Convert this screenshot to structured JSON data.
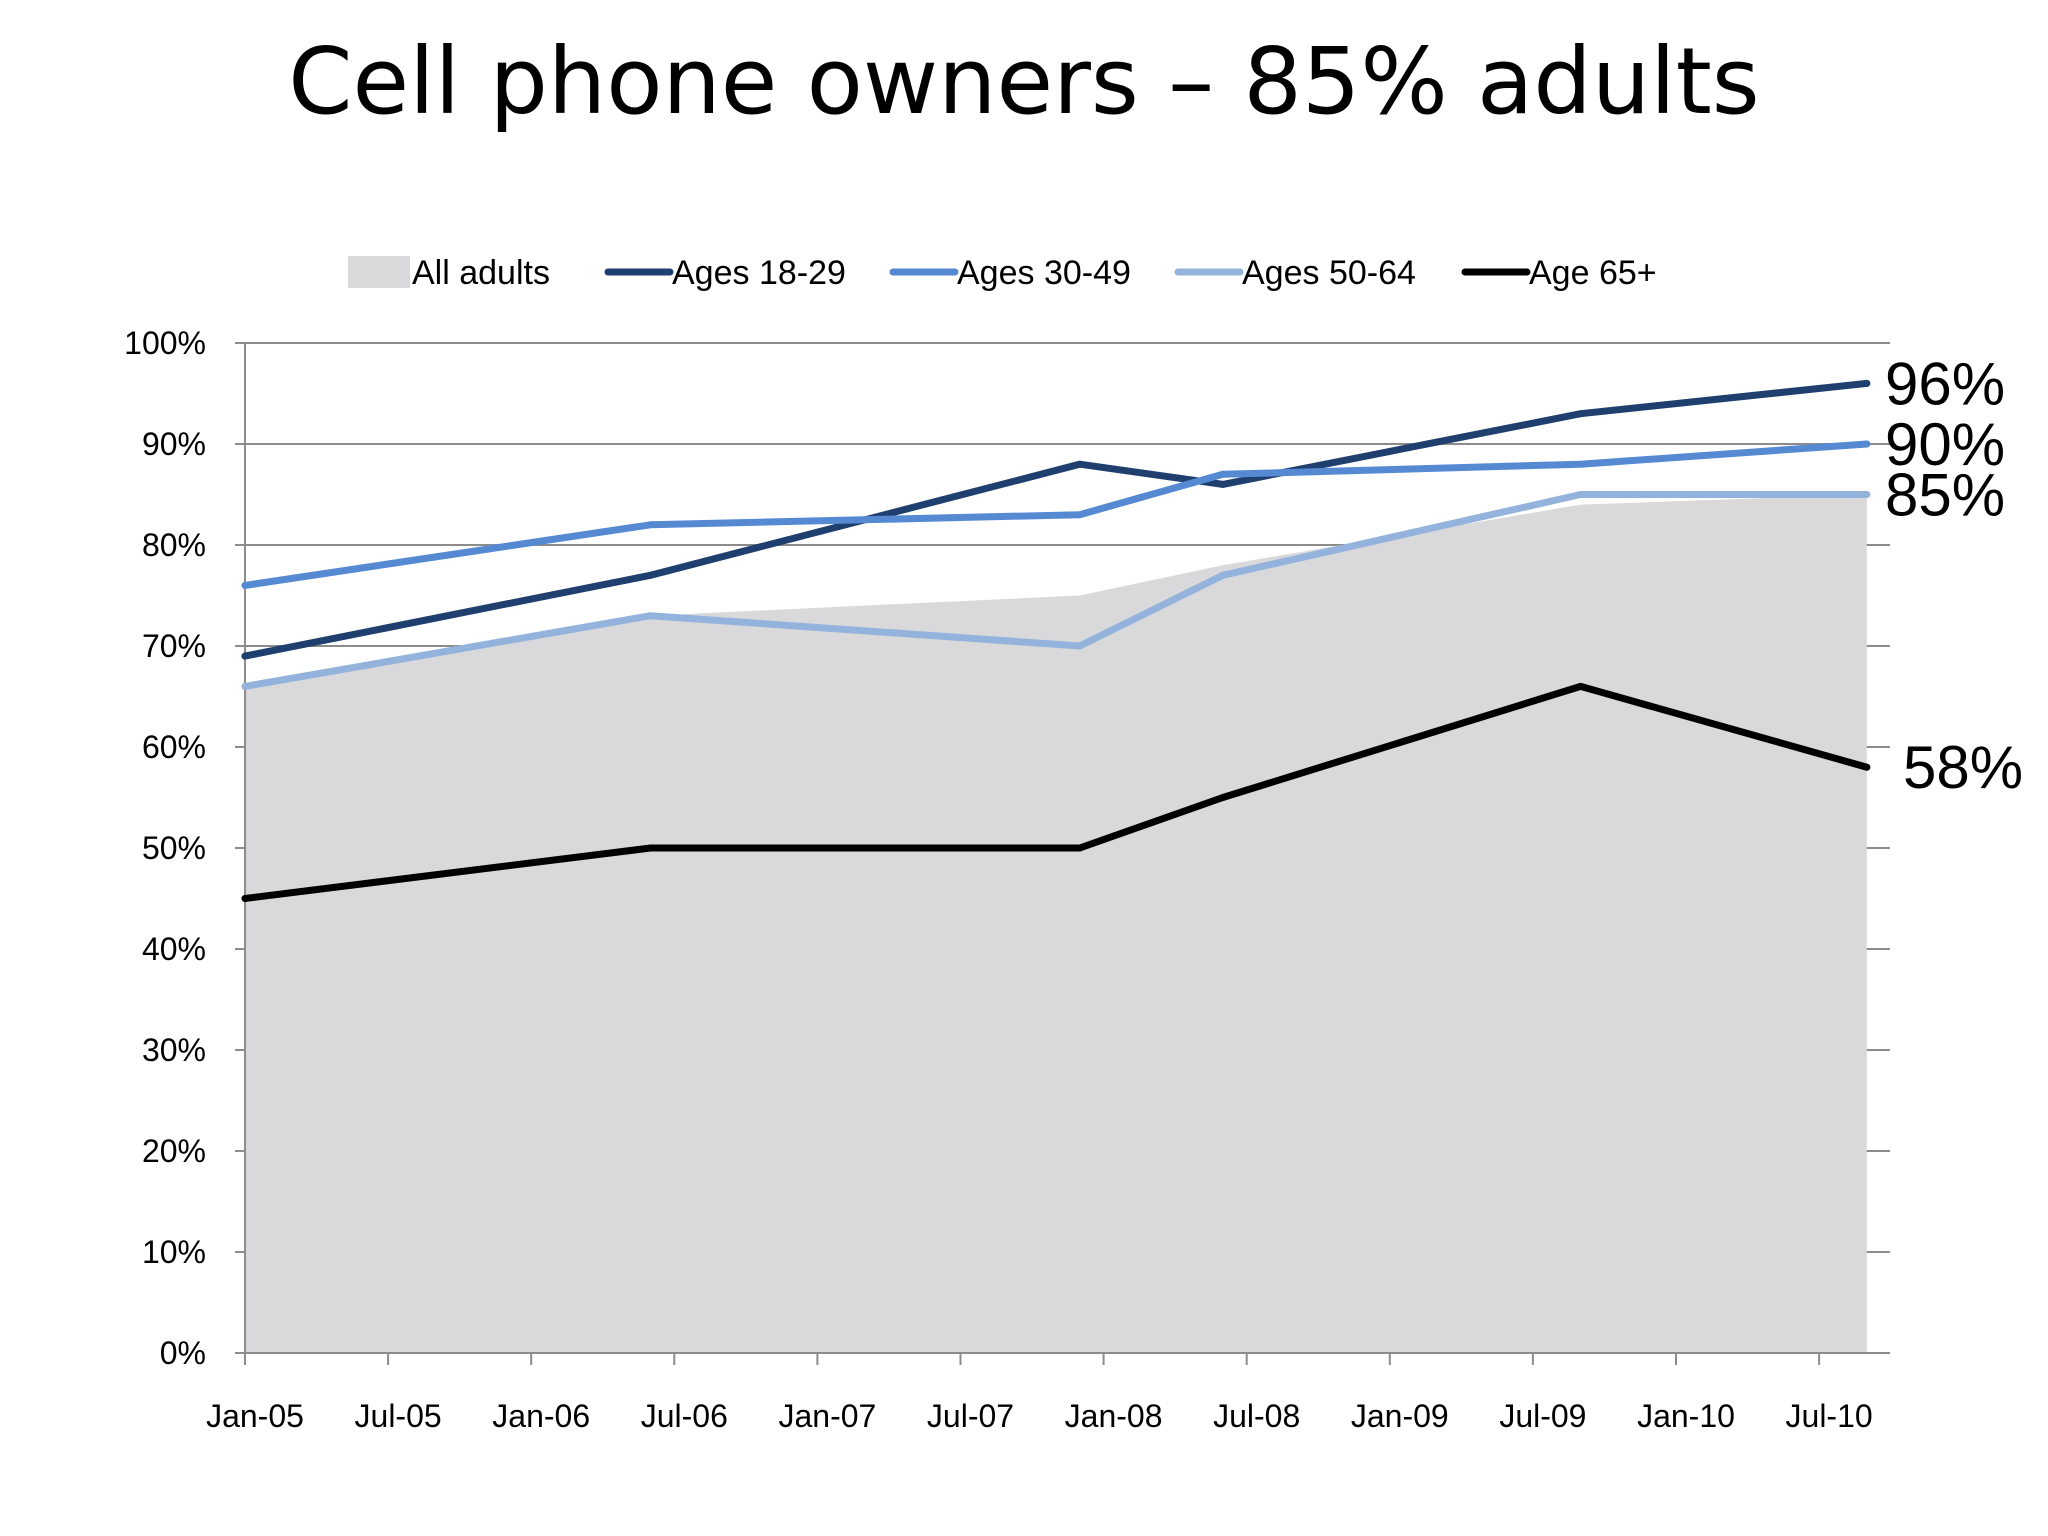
{
  "slide": {
    "title": "Cell phone owners – 85% adults"
  },
  "chart_data": {
    "type": "line",
    "title": "Cell phone owners – 85% adults",
    "x_dates": [
      "2005-01",
      "2006-06",
      "2007-12",
      "2008-06",
      "2009-09",
      "2010-09"
    ],
    "x_tick_labels": [
      "Jan-05",
      "Jul-05",
      "Jan-06",
      "Jul-06",
      "Jan-07",
      "Jul-07",
      "Jan-08",
      "Jul-08",
      "Jan-09",
      "Jul-09",
      "Jan-10",
      "Jul-10"
    ],
    "y_tick_labels": [
      "0%",
      "10%",
      "20%",
      "30%",
      "40%",
      "50%",
      "60%",
      "70%",
      "80%",
      "90%",
      "100%"
    ],
    "ylim": [
      0,
      100
    ],
    "y_unit": "%",
    "grid": "horizontal",
    "legend_position": "top",
    "series": [
      {
        "name": "All adults",
        "type": "area",
        "color": "#d9d8da",
        "values": [
          66,
          73,
          75,
          78,
          84,
          85
        ]
      },
      {
        "name": "Ages 18-29",
        "type": "line",
        "color": "#1f3f6e",
        "values": [
          69,
          77,
          88,
          86,
          93,
          96
        ]
      },
      {
        "name": "Ages 30-49",
        "type": "line",
        "color": "#558ad3",
        "values": [
          76,
          82,
          83,
          87,
          88,
          90
        ]
      },
      {
        "name": "Ages 50-64",
        "type": "line",
        "color": "#93b3dc",
        "values": [
          66,
          73,
          70,
          77,
          85,
          85
        ]
      },
      {
        "name": "Age 65+",
        "type": "line",
        "color": "#000000",
        "values": [
          45,
          50,
          50,
          55,
          66,
          58
        ]
      }
    ],
    "end_labels": [
      {
        "text": "96%",
        "value": 96
      },
      {
        "text": "90%",
        "value": 90
      },
      {
        "text": "85%",
        "value": 85
      },
      {
        "text": "58%",
        "value": 58
      }
    ]
  }
}
